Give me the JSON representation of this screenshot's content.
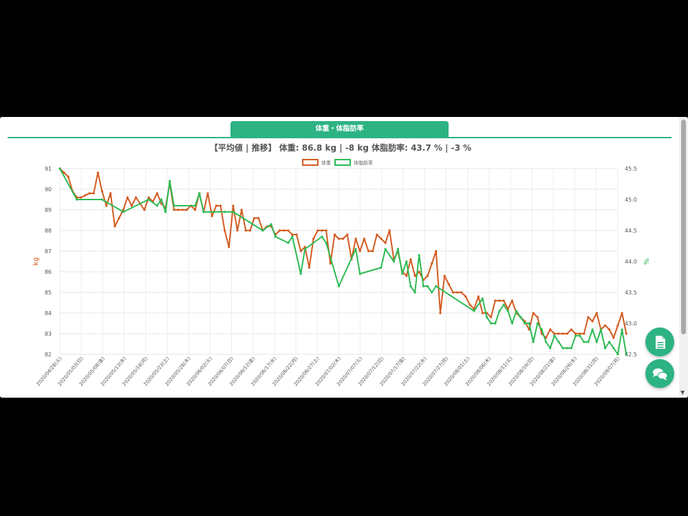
{
  "tab": {
    "label": "体重・体脂肪率"
  },
  "summary": {
    "text": "【平均値 | 推移】 体重: 86.8 kg | -8 kg 体脂肪率: 43.7 % | -3 %"
  },
  "colors": {
    "weight": "#d35a1f",
    "fat": "#2cba52",
    "accent": "#2db383"
  },
  "icons": {
    "report": "document-icon",
    "chat": "chat-bubbles-icon"
  },
  "chart_data": {
    "type": "line",
    "legend": [
      "体重",
      "体脂肪率"
    ],
    "legend_position": "top-center",
    "grid": true,
    "y_left": {
      "label": "kg",
      "min": 82,
      "max": 91,
      "ticks": [
        "82",
        "83",
        "84",
        "85",
        "86",
        "87",
        "88",
        "89",
        "90",
        "91"
      ]
    },
    "y_right": {
      "label": "%",
      "min": 42.5,
      "max": 45.5,
      "ticks": [
        "42.5",
        "43.0",
        "43.5",
        "44.0",
        "44.5",
        "45.0",
        "45.5"
      ]
    },
    "x_start": "2020/04/28",
    "x_end": "2020/09/07",
    "x_ticks": [
      "2020/04/28(火)",
      "2020/05/03(日)",
      "2020/05/08(金)",
      "2020/05/13(水)",
      "2020/05/18(月)",
      "2020/05/23(土)",
      "2020/05/28(木)",
      "2020/06/02(火)",
      "2020/06/07(日)",
      "2020/06/12(金)",
      "2020/06/17(水)",
      "2020/06/22(月)",
      "2020/06/27(土)",
      "2020/07/02(木)",
      "2020/07/07(火)",
      "2020/07/12(日)",
      "2020/07/17(金)",
      "2020/07/22(水)",
      "2020/07/27(月)",
      "2020/08/01(土)",
      "2020/08/06(木)",
      "2020/08/11(火)",
      "2020/08/16(日)",
      "2020/08/21(金)",
      "2020/08/26(水)",
      "2020/08/31(月)",
      "2020/09/07(月)"
    ],
    "series": [
      {
        "name": "体重",
        "axis": "left",
        "points": [
          [
            "2020/04/28",
            91.0
          ],
          [
            "2020/04/29",
            90.8
          ],
          [
            "2020/04/30",
            90.6
          ],
          [
            "2020/05/01",
            89.9
          ],
          [
            "2020/05/02",
            89.6
          ],
          [
            "2020/05/03",
            89.6
          ],
          [
            "2020/05/04",
            89.7
          ],
          [
            "2020/05/05",
            89.8
          ],
          [
            "2020/05/06",
            89.8
          ],
          [
            "2020/05/07",
            90.8
          ],
          [
            "2020/05/08",
            89.9
          ],
          [
            "2020/05/09",
            89.2
          ],
          [
            "2020/05/10",
            89.8
          ],
          [
            "2020/05/11",
            88.2
          ],
          [
            "2020/05/12",
            88.6
          ],
          [
            "2020/05/13",
            89.0
          ],
          [
            "2020/05/14",
            89.6
          ],
          [
            "2020/05/15",
            89.2
          ],
          [
            "2020/05/16",
            89.6
          ],
          [
            "2020/05/17",
            89.3
          ],
          [
            "2020/05/18",
            89.0
          ],
          [
            "2020/05/19",
            89.6
          ],
          [
            "2020/05/20",
            89.4
          ],
          [
            "2020/05/21",
            89.8
          ],
          [
            "2020/05/22",
            89.3
          ],
          [
            "2020/05/23",
            89.1
          ],
          [
            "2020/05/24",
            90.3
          ],
          [
            "2020/05/25",
            89.0
          ],
          [
            "2020/05/26",
            89.0
          ],
          [
            "2020/05/27",
            89.0
          ],
          [
            "2020/05/28",
            89.0
          ],
          [
            "2020/05/29",
            89.2
          ],
          [
            "2020/05/30",
            89.0
          ],
          [
            "2020/05/31",
            89.8
          ],
          [
            "2020/06/01",
            88.9
          ],
          [
            "2020/06/02",
            89.8
          ],
          [
            "2020/06/03",
            88.7
          ],
          [
            "2020/06/04",
            89.2
          ],
          [
            "2020/06/05",
            89.2
          ],
          [
            "2020/06/06",
            88.0
          ],
          [
            "2020/06/07",
            87.2
          ],
          [
            "2020/06/08",
            89.2
          ],
          [
            "2020/06/09",
            88.0
          ],
          [
            "2020/06/10",
            89.0
          ],
          [
            "2020/06/11",
            88.0
          ],
          [
            "2020/06/12",
            88.0
          ],
          [
            "2020/06/13",
            88.6
          ],
          [
            "2020/06/14",
            88.6
          ],
          [
            "2020/06/15",
            88.0
          ],
          [
            "2020/06/16",
            88.2
          ],
          [
            "2020/06/17",
            88.2
          ],
          [
            "2020/06/18",
            87.8
          ],
          [
            "2020/06/19",
            88.0
          ],
          [
            "2020/06/20",
            88.0
          ],
          [
            "2020/06/21",
            88.0
          ],
          [
            "2020/06/22",
            87.8
          ],
          [
            "2020/06/23",
            87.8
          ],
          [
            "2020/06/24",
            87.0
          ],
          [
            "2020/06/25",
            87.2
          ],
          [
            "2020/06/26",
            86.2
          ],
          [
            "2020/06/27",
            87.6
          ],
          [
            "2020/06/28",
            88.0
          ],
          [
            "2020/06/29",
            88.0
          ],
          [
            "2020/06/30",
            88.0
          ],
          [
            "2020/07/01",
            86.4
          ],
          [
            "2020/07/02",
            87.8
          ],
          [
            "2020/07/03",
            87.6
          ],
          [
            "2020/07/04",
            87.6
          ],
          [
            "2020/07/05",
            87.8
          ],
          [
            "2020/07/06",
            86.6
          ],
          [
            "2020/07/07",
            87.6
          ],
          [
            "2020/07/08",
            87.0
          ],
          [
            "2020/07/09",
            87.6
          ],
          [
            "2020/07/10",
            87.0
          ],
          [
            "2020/07/11",
            87.0
          ],
          [
            "2020/07/12",
            87.8
          ],
          [
            "2020/07/13",
            87.6
          ],
          [
            "2020/07/14",
            87.4
          ],
          [
            "2020/07/15",
            88.0
          ],
          [
            "2020/07/16",
            86.6
          ],
          [
            "2020/07/17",
            87.0
          ],
          [
            "2020/07/18",
            86.0
          ],
          [
            "2020/07/19",
            85.8
          ],
          [
            "2020/07/20",
            86.6
          ],
          [
            "2020/07/21",
            85.8
          ],
          [
            "2020/07/22",
            86.0
          ],
          [
            "2020/07/23",
            85.6
          ],
          [
            "2020/07/24",
            85.8
          ],
          [
            "2020/07/25",
            86.4
          ],
          [
            "2020/07/26",
            87.0
          ],
          [
            "2020/07/27",
            84.0
          ],
          [
            "2020/07/28",
            85.8
          ],
          [
            "2020/07/29",
            85.4
          ],
          [
            "2020/07/30",
            85.0
          ],
          [
            "2020/07/31",
            85.0
          ],
          [
            "2020/08/01",
            85.0
          ],
          [
            "2020/08/02",
            84.8
          ],
          [
            "2020/08/03",
            84.4
          ],
          [
            "2020/08/04",
            84.2
          ],
          [
            "2020/08/05",
            84.8
          ],
          [
            "2020/08/06",
            84.0
          ],
          [
            "2020/08/07",
            84.0
          ],
          [
            "2020/08/08",
            83.8
          ],
          [
            "2020/08/09",
            84.6
          ],
          [
            "2020/08/10",
            84.6
          ],
          [
            "2020/08/11",
            84.6
          ],
          [
            "2020/08/12",
            84.2
          ],
          [
            "2020/08/13",
            84.6
          ],
          [
            "2020/08/14",
            84.0
          ],
          [
            "2020/08/15",
            83.8
          ],
          [
            "2020/08/16",
            83.6
          ],
          [
            "2020/08/17",
            83.2
          ],
          [
            "2020/08/18",
            84.0
          ],
          [
            "2020/08/19",
            83.8
          ],
          [
            "2020/08/20",
            83.0
          ],
          [
            "2020/08/21",
            82.8
          ],
          [
            "2020/08/22",
            83.2
          ],
          [
            "2020/08/23",
            83.0
          ],
          [
            "2020/08/24",
            83.0
          ],
          [
            "2020/08/25",
            83.0
          ],
          [
            "2020/08/26",
            83.0
          ],
          [
            "2020/08/27",
            83.2
          ],
          [
            "2020/08/28",
            83.0
          ],
          [
            "2020/08/29",
            83.0
          ],
          [
            "2020/08/30",
            83.0
          ],
          [
            "2020/08/31",
            83.8
          ],
          [
            "2020/09/01",
            83.6
          ],
          [
            "2020/09/02",
            84.0
          ],
          [
            "2020/09/03",
            83.2
          ],
          [
            "2020/09/04",
            83.4
          ],
          [
            "2020/09/05",
            83.2
          ],
          [
            "2020/09/06",
            82.8
          ],
          [
            "2020/09/07",
            83.4
          ],
          [
            "2020/09/08",
            84.0
          ],
          [
            "2020/09/09",
            83.0
          ]
        ]
      },
      {
        "name": "体脂肪率",
        "axis": "right",
        "points": [
          [
            "2020/04/28",
            45.5
          ],
          [
            "2020/05/02",
            45.0
          ],
          [
            "2020/05/08",
            45.0
          ],
          [
            "2020/05/13",
            44.8
          ],
          [
            "2020/05/19",
            45.0
          ],
          [
            "2020/05/21",
            44.9
          ],
          [
            "2020/05/22",
            45.0
          ],
          [
            "2020/05/23",
            44.8
          ],
          [
            "2020/05/24",
            45.3
          ],
          [
            "2020/05/25",
            44.9
          ],
          [
            "2020/05/30",
            44.9
          ],
          [
            "2020/05/31",
            45.1
          ],
          [
            "2020/06/01",
            44.8
          ],
          [
            "2020/06/06",
            44.8
          ],
          [
            "2020/06/08",
            44.8
          ],
          [
            "2020/06/15",
            44.5
          ],
          [
            "2020/06/17",
            44.6
          ],
          [
            "2020/06/18",
            44.4
          ],
          [
            "2020/06/21",
            44.3
          ],
          [
            "2020/06/22",
            44.4
          ],
          [
            "2020/06/24",
            43.8
          ],
          [
            "2020/06/25",
            44.2
          ],
          [
            "2020/06/29",
            44.4
          ],
          [
            "2020/06/30",
            44.3
          ],
          [
            "2020/07/03",
            43.6
          ],
          [
            "2020/07/07",
            44.2
          ],
          [
            "2020/07/08",
            43.8
          ],
          [
            "2020/07/13",
            43.9
          ],
          [
            "2020/07/14",
            44.2
          ],
          [
            "2020/07/16",
            44.0
          ],
          [
            "2020/07/17",
            44.2
          ],
          [
            "2020/07/18",
            43.8
          ],
          [
            "2020/07/19",
            44.0
          ],
          [
            "2020/07/20",
            43.6
          ],
          [
            "2020/07/21",
            43.5
          ],
          [
            "2020/07/22",
            44.1
          ],
          [
            "2020/07/23",
            43.6
          ],
          [
            "2020/07/24",
            43.6
          ],
          [
            "2020/07/25",
            43.5
          ],
          [
            "2020/07/26",
            43.6
          ],
          [
            "2020/08/04",
            43.2
          ],
          [
            "2020/08/06",
            43.4
          ],
          [
            "2020/08/07",
            43.1
          ],
          [
            "2020/08/08",
            43.0
          ],
          [
            "2020/08/09",
            43.0
          ],
          [
            "2020/08/10",
            43.2
          ],
          [
            "2020/08/11",
            43.3
          ],
          [
            "2020/08/12",
            43.2
          ],
          [
            "2020/08/13",
            43.0
          ],
          [
            "2020/08/14",
            43.2
          ],
          [
            "2020/08/15",
            43.1
          ],
          [
            "2020/08/16",
            43.0
          ],
          [
            "2020/08/17",
            43.0
          ],
          [
            "2020/08/18",
            42.7
          ],
          [
            "2020/08/19",
            43.0
          ],
          [
            "2020/08/20",
            42.9
          ],
          [
            "2020/08/21",
            42.7
          ],
          [
            "2020/08/22",
            42.6
          ],
          [
            "2020/08/23",
            42.8
          ],
          [
            "2020/08/24",
            42.7
          ],
          [
            "2020/08/25",
            42.6
          ],
          [
            "2020/08/26",
            42.6
          ],
          [
            "2020/08/27",
            42.6
          ],
          [
            "2020/08/28",
            42.8
          ],
          [
            "2020/08/29",
            42.8
          ],
          [
            "2020/08/30",
            42.7
          ],
          [
            "2020/08/31",
            42.7
          ],
          [
            "2020/09/01",
            42.9
          ],
          [
            "2020/09/02",
            42.7
          ],
          [
            "2020/09/03",
            42.9
          ],
          [
            "2020/09/04",
            42.6
          ],
          [
            "2020/09/05",
            42.7
          ],
          [
            "2020/09/06",
            42.6
          ],
          [
            "2020/09/07",
            42.5
          ],
          [
            "2020/09/08",
            42.9
          ],
          [
            "2020/09/09",
            42.5
          ]
        ]
      }
    ]
  }
}
